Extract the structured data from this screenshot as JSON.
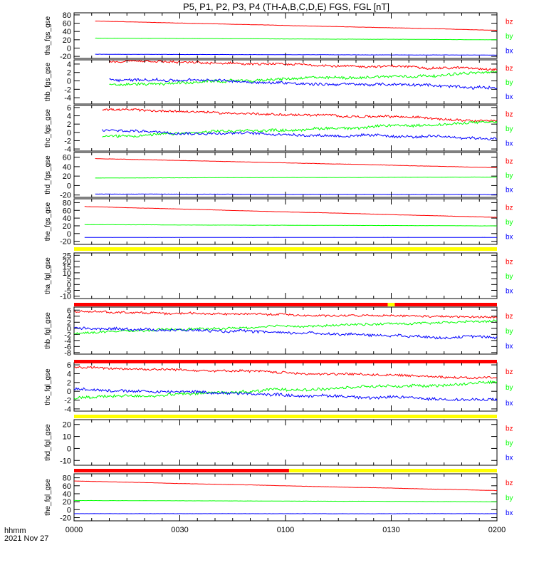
{
  "chart_data": {
    "type": "line",
    "title": "P5, P1, P2, P3, P4 (TH-A,B,C,D,E) FGS, FGL [nT]",
    "xaxis": {
      "label_line1": "hhmm",
      "label_line2": "2021 Nov 27",
      "ticks": [
        "0000",
        "0030",
        "0100",
        "0130",
        "0200"
      ],
      "range_minutes": [
        0,
        120
      ]
    },
    "series_colors": {
      "bx": "#0000ff",
      "by": "#00ff00",
      "bz": "#ff0000"
    },
    "panels": [
      {
        "ylabel": "tha_fgs_gse",
        "yticks": [
          "80",
          "60",
          "40",
          "20",
          "0",
          "-20"
        ],
        "yrange": [
          -25,
          85
        ],
        "x_start_minutes": 6,
        "series": [
          {
            "name": "bz",
            "start": 65,
            "end": 43,
            "noise": 0.5
          },
          {
            "name": "by",
            "start": 24,
            "end": 20,
            "noise": 0.4
          },
          {
            "name": "bx",
            "start": -15,
            "end": -17,
            "noise": 0.4
          }
        ]
      },
      {
        "ylabel": "thb_fgs_gse",
        "yticks": [
          "4",
          "2",
          "0",
          "-2",
          "-4"
        ],
        "yrange": [
          -5.5,
          5
        ],
        "x_start_minutes": 10,
        "series": [
          {
            "name": "bz",
            "start": 4.5,
            "end": 3.0,
            "noise": 0.5
          },
          {
            "name": "by",
            "start": -1.0,
            "end": 2.0,
            "noise": 0.6
          },
          {
            "name": "bx",
            "start": 0.5,
            "end": -1.5,
            "noise": 0.6
          }
        ]
      },
      {
        "ylabel": "thc_fgs_gse",
        "yticks": [
          "6",
          "4",
          "2",
          "0",
          "-2",
          "-4"
        ],
        "yrange": [
          -4.5,
          6.5
        ],
        "x_start_minutes": 8,
        "series": [
          {
            "name": "bz",
            "start": 5.5,
            "end": 3.0,
            "noise": 0.5
          },
          {
            "name": "by",
            "start": -1.0,
            "end": 2.5,
            "noise": 0.6
          },
          {
            "name": "bx",
            "start": 0.5,
            "end": -1.5,
            "noise": 0.6
          }
        ]
      },
      {
        "ylabel": "thd_fgs_gse",
        "yticks": [
          "60",
          "40",
          "20",
          "0",
          "-20"
        ],
        "yrange": [
          -25,
          70
        ],
        "x_start_minutes": 6,
        "series": [
          {
            "name": "bz",
            "start": 57,
            "end": 38,
            "noise": 0.5
          },
          {
            "name": "by",
            "start": 16,
            "end": 18,
            "noise": 0.4
          },
          {
            "name": "bx",
            "start": -18,
            "end": -19,
            "noise": 0.4
          }
        ]
      },
      {
        "ylabel": "the_fgs_gse",
        "yticks": [
          "80",
          "60",
          "40",
          "20",
          "0",
          "-20"
        ],
        "yrange": [
          -28,
          90
        ],
        "x_start_minutes": 3,
        "series": [
          {
            "name": "bz",
            "start": 70,
            "end": 42,
            "noise": 0.5
          },
          {
            "name": "by",
            "start": 23,
            "end": 20,
            "noise": 0.4
          },
          {
            "name": "bx",
            "start": -10,
            "end": -10,
            "noise": 0.3
          }
        ]
      },
      {
        "ylabel": "tha_fgl_gse",
        "yticks": [
          "25",
          "20",
          "15",
          "10",
          "5",
          "0",
          "-5",
          "-10"
        ],
        "yrange": [
          -12,
          27
        ],
        "x_start_minutes": 0,
        "series": []
      },
      {
        "ylabel": "thb_fgl_gse",
        "yticks": [
          "6",
          "4",
          "2",
          "0",
          "-2",
          "-4",
          "-6",
          "-8"
        ],
        "yrange": [
          -8.5,
          7
        ],
        "x_start_minutes": 0,
        "series": [
          {
            "name": "bz",
            "start": 5.5,
            "end": 3.5,
            "noise": 0.6
          },
          {
            "name": "by",
            "start": -1.5,
            "end": 2.5,
            "noise": 0.7
          },
          {
            "name": "bx",
            "start": 0.3,
            "end": -3.0,
            "noise": 0.8
          }
        ]
      },
      {
        "ylabel": "thc_fgl_gse",
        "yticks": [
          "6",
          "4",
          "2",
          "0",
          "-2",
          "-4"
        ],
        "yrange": [
          -4.5,
          6.5
        ],
        "x_start_minutes": 0,
        "series": [
          {
            "name": "bz",
            "start": 5.5,
            "end": 3.0,
            "noise": 0.5
          },
          {
            "name": "by",
            "start": -1.5,
            "end": 2.0,
            "noise": 0.6
          },
          {
            "name": "bx",
            "start": 0.5,
            "end": -2.0,
            "noise": 0.6
          }
        ]
      },
      {
        "ylabel": "thd_fgl_gse",
        "yticks": [
          "20",
          "10",
          "0",
          "-10"
        ],
        "yrange": [
          -14,
          24
        ],
        "x_start_minutes": 0,
        "series": []
      },
      {
        "ylabel": "the_fgl_gse",
        "yticks": [
          "80",
          "60",
          "40",
          "20",
          "0",
          "-20"
        ],
        "yrange": [
          -28,
          90
        ],
        "x_start_minutes": 0,
        "series": [
          {
            "name": "bz",
            "start": 72,
            "end": 48,
            "noise": 0.5
          },
          {
            "name": "by",
            "start": 23,
            "end": 20,
            "noise": 0.4
          },
          {
            "name": "bx",
            "start": -10,
            "end": -10,
            "noise": 0.3
          }
        ]
      }
    ],
    "status_bars": [
      {
        "above_panel": 5,
        "segments": [
          {
            "from": 0,
            "to": 120,
            "color": "#ffff00"
          }
        ]
      },
      {
        "above_panel": 6,
        "segments": [
          {
            "from": 0,
            "to": 89,
            "color": "#ff0000"
          },
          {
            "from": 89,
            "to": 91,
            "color": "#ffff00"
          },
          {
            "from": 91,
            "to": 120,
            "color": "#ff0000"
          }
        ]
      },
      {
        "above_panel": 7,
        "segments": [
          {
            "from": 0,
            "to": 120,
            "color": "#ff0000"
          }
        ]
      },
      {
        "above_panel": 8,
        "segments": [
          {
            "from": 0,
            "to": 120,
            "color": "#ffff00"
          }
        ]
      },
      {
        "above_panel": 9,
        "segments": [
          {
            "from": 0,
            "to": 61,
            "color": "#ff0000"
          },
          {
            "from": 61,
            "to": 120,
            "color": "#ffff00"
          }
        ]
      }
    ]
  }
}
